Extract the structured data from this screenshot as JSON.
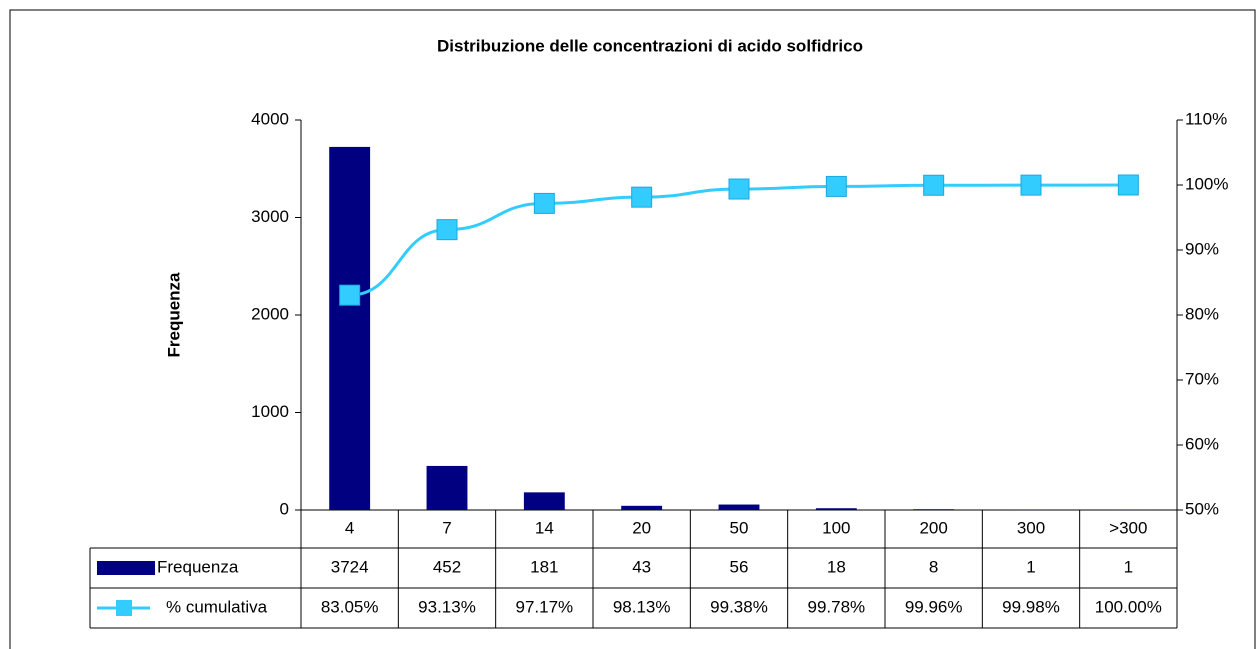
{
  "chart_data": {
    "type": "bar",
    "title": "Distribuzione delle concentrazioni di acido solfidrico",
    "y_label": "Frequenza",
    "categories": [
      "4",
      "7",
      "14",
      "20",
      "50",
      "100",
      "200",
      "300",
      ">300"
    ],
    "series": [
      {
        "name": "Frequenza",
        "type": "bar",
        "color": "#000080",
        "values": [
          3724,
          452,
          181,
          43,
          56,
          18,
          8,
          1,
          1
        ]
      },
      {
        "name": "% cumulativa",
        "type": "line",
        "axis": "y2",
        "color": "#33ccff",
        "values": [
          83.05,
          93.13,
          97.17,
          98.13,
          99.38,
          99.78,
          99.96,
          99.98,
          100.0
        ],
        "value_labels": [
          "83.05%",
          "93.13%",
          "97.17%",
          "98.13%",
          "99.38%",
          "99.78%",
          "99.96%",
          "99.98%",
          "100.00%"
        ]
      }
    ],
    "ylim": [
      0,
      4000
    ],
    "yticks": [
      0,
      1000,
      2000,
      3000,
      4000
    ],
    "y2lim": [
      50,
      110
    ],
    "y2ticks": [
      {
        "value": 50,
        "label": "50%"
      },
      {
        "value": 60,
        "label": "60%"
      },
      {
        "value": 70,
        "label": "70%"
      },
      {
        "value": 80,
        "label": "80%"
      },
      {
        "value": 90,
        "label": "90%"
      },
      {
        "value": 100,
        "label": "100%"
      },
      {
        "value": 110,
        "label": "110%"
      }
    ],
    "grid": false,
    "data_table": true
  }
}
